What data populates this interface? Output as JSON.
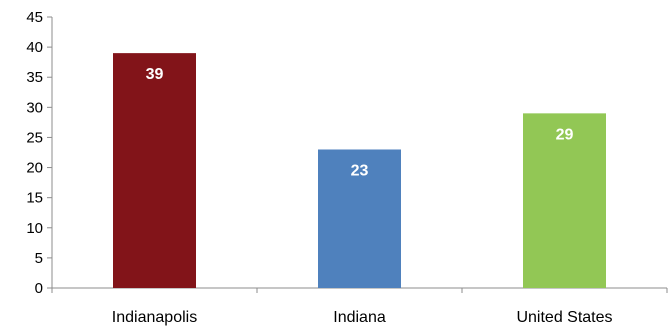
{
  "chart_data": {
    "type": "bar",
    "categories": [
      "Indianapolis",
      "Indiana",
      "United States"
    ],
    "values": [
      39,
      23,
      29
    ],
    "data_labels": [
      "39",
      "23",
      "29"
    ],
    "bar_colors": [
      "#821419",
      "#4f81bd",
      "#92c755"
    ],
    "ylim": [
      0,
      45
    ],
    "yticks": [
      0,
      5,
      10,
      15,
      20,
      25,
      30,
      35,
      40,
      45
    ],
    "ytick_labels": [
      "0",
      "5",
      "10",
      "15",
      "20",
      "25",
      "30",
      "35",
      "40",
      "45"
    ],
    "title": "",
    "xlabel": "",
    "ylabel": "",
    "grid": false,
    "legend": "none"
  }
}
